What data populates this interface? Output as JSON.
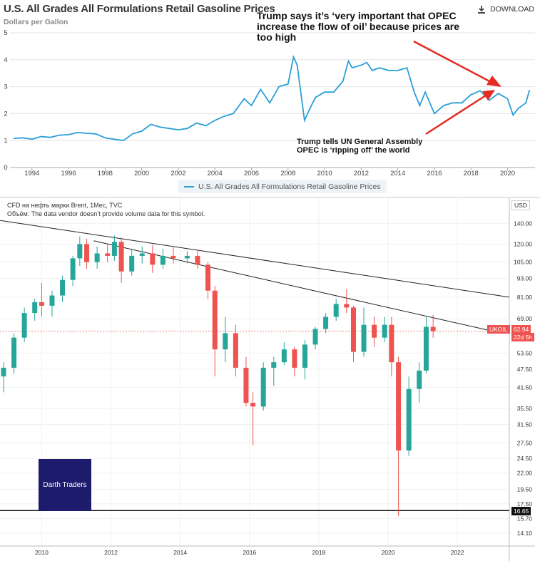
{
  "colors": {
    "line": "#2a9fd6",
    "arrow": "#e32b23",
    "up": "#26a69a",
    "down": "#ef5350",
    "logo_bg": "#1d1b6b"
  },
  "top_panel": {
    "title": "U.S. All Grades All Formulations Retail Gasoline Prices",
    "subtitle": "Dollars per Gallon",
    "download_label": "DOWNLOAD",
    "download_icon": "download-icon",
    "annotation_1": "Trump says it’s ‘very important that OPEC increase the flow of oil’ because prices are too high",
    "annotation_2": "Trump tells UN General Assembly OPEC is ‘ripping off’ the world",
    "legend_label": "U.S. All Grades All Formulations Retail Gasoline Prices"
  },
  "bottom_panel": {
    "header_line_1": "CFD на нефть марки Brent, 1Мес, TVC",
    "header_line_2": "Объём: The data vendor doesn’t provide volume data for this symbol.",
    "currency": "USD",
    "symbol_tag": "UKOIL",
    "last_price": "62.94",
    "countdown": "22d 5h",
    "support_label": "16.65",
    "watermark": "Darth Traders"
  },
  "chart_data": [
    {
      "type": "line",
      "title": "U.S. All Grades All Formulations Retail Gasoline Prices",
      "ylabel": "Dollars per Gallon",
      "ylim": [
        0,
        5
      ],
      "yticks": [
        "0",
        "1",
        "2",
        "3",
        "4",
        "5"
      ],
      "xticks": [
        "1994",
        "1996",
        "1998",
        "2000",
        "2002",
        "2004",
        "2006",
        "2008",
        "2010",
        "2012",
        "2014",
        "2016",
        "2018",
        "2020"
      ],
      "series": [
        {
          "name": "U.S. All Grades All Formulations Retail Gasoline Prices",
          "x": [
            1993.0,
            1993.5,
            1994.0,
            1994.5,
            1995.0,
            1995.5,
            1996.0,
            1996.5,
            1997.0,
            1997.5,
            1998.0,
            1998.5,
            1999.0,
            1999.5,
            2000.0,
            2000.5,
            2001.0,
            2001.5,
            2002.0,
            2002.5,
            2003.0,
            2003.5,
            2004.0,
            2004.5,
            2005.0,
            2005.6,
            2006.0,
            2006.5,
            2007.0,
            2007.5,
            2008.0,
            2008.3,
            2008.5,
            2008.9,
            2009.2,
            2009.5,
            2010.0,
            2010.5,
            2011.0,
            2011.3,
            2011.5,
            2012.0,
            2012.3,
            2012.6,
            2013.0,
            2013.5,
            2014.0,
            2014.5,
            2014.9,
            2015.2,
            2015.5,
            2016.0,
            2016.5,
            2017.0,
            2017.5,
            2018.0,
            2018.5,
            2019.0,
            2019.5,
            2020.0,
            2020.3,
            2020.6,
            2021.0,
            2021.2
          ],
          "values": [
            1.08,
            1.1,
            1.05,
            1.15,
            1.12,
            1.2,
            1.22,
            1.3,
            1.27,
            1.25,
            1.1,
            1.05,
            1.0,
            1.25,
            1.35,
            1.6,
            1.5,
            1.45,
            1.4,
            1.45,
            1.65,
            1.55,
            1.75,
            1.9,
            2.0,
            2.55,
            2.3,
            2.9,
            2.4,
            3.0,
            3.1,
            4.1,
            3.8,
            1.75,
            2.2,
            2.6,
            2.8,
            2.8,
            3.2,
            3.95,
            3.7,
            3.8,
            3.9,
            3.6,
            3.7,
            3.6,
            3.6,
            3.7,
            2.8,
            2.3,
            2.8,
            2.0,
            2.3,
            2.4,
            2.4,
            2.7,
            2.85,
            2.5,
            2.75,
            2.55,
            1.95,
            2.2,
            2.4,
            2.88
          ]
        }
      ]
    },
    {
      "type": "candlestick",
      "title": "CFD на нефть марки Brent, 1Мес, TVC",
      "ylabel": "USD",
      "scale": "log",
      "ylim": [
        13.5,
        160
      ],
      "yticks": [
        "140.00",
        "120.00",
        "105.00",
        "93.00",
        "81.00",
        "69.00",
        "53.50",
        "47.50",
        "41.50",
        "35.50",
        "31.50",
        "27.50",
        "24.50",
        "22.00",
        "19.50",
        "17.50",
        "15.70",
        "14.10"
      ],
      "xticks": [
        "2010",
        "2012",
        "2014",
        "2016",
        "2018",
        "2020",
        "2022"
      ],
      "series": [
        {
          "name": "UKOIL",
          "x": [
            2008.9,
            2009.2,
            2009.5,
            2009.8,
            2010.0,
            2010.3,
            2010.6,
            2010.9,
            2011.1,
            2011.3,
            2011.6,
            2011.9,
            2012.1,
            2012.3,
            2012.6,
            2012.9,
            2013.2,
            2013.5,
            2013.8,
            2014.2,
            2014.5,
            2014.8,
            2015.0,
            2015.3,
            2015.6,
            2015.9,
            2016.1,
            2016.4,
            2016.7,
            2017.0,
            2017.3,
            2017.6,
            2017.9,
            2018.2,
            2018.5,
            2018.8,
            2019.0,
            2019.3,
            2019.6,
            2019.9,
            2020.1,
            2020.3,
            2020.6,
            2020.9,
            2021.1,
            2021.3
          ],
          "values": [
            [
              45,
              50,
              40,
              48
            ],
            [
              48,
              62,
              46,
              60
            ],
            [
              60,
              75,
              58,
              72
            ],
            [
              72,
              80,
              68,
              78
            ],
            [
              78,
              90,
              70,
              76
            ],
            [
              76,
              85,
              70,
              82
            ],
            [
              82,
              95,
              78,
              92
            ],
            [
              92,
              110,
              88,
              108
            ],
            [
              108,
              127,
              102,
              120
            ],
            [
              120,
              125,
              100,
              105
            ],
            [
              105,
              118,
              100,
              112
            ],
            [
              112,
              120,
              105,
              110
            ],
            [
              110,
              128,
              106,
              122
            ],
            [
              122,
              126,
              90,
              98
            ],
            [
              98,
              116,
              95,
              110
            ],
            [
              110,
              118,
              104,
              112
            ],
            [
              112,
              119,
              97,
              103
            ],
            [
              103,
              116,
              100,
              110
            ],
            [
              110,
              117,
              104,
              108
            ],
            [
              108,
              114,
              104,
              110
            ],
            [
              110,
              115,
              100,
              103
            ],
            [
              103,
              105,
              80,
              85
            ],
            [
              85,
              88,
              45,
              55
            ],
            [
              55,
              70,
              50,
              62
            ],
            [
              62,
              66,
              45,
              48
            ],
            [
              48,
              52,
              36,
              37
            ],
            [
              37,
              40,
              27,
              36
            ],
            [
              36,
              50,
              35,
              48
            ],
            [
              48,
              52,
              42,
              50
            ],
            [
              50,
              58,
              49,
              55
            ],
            [
              55,
              56,
              45,
              48
            ],
            [
              48,
              59,
              44,
              57
            ],
            [
              57,
              65,
              55,
              64
            ],
            [
              64,
              72,
              62,
              70
            ],
            [
              70,
              80,
              68,
              77
            ],
            [
              77,
              86,
              72,
              75
            ],
            [
              75,
              76,
              50,
              54
            ],
            [
              54,
              75,
              52,
              66
            ],
            [
              66,
              70,
              56,
              60
            ],
            [
              60,
              70,
              58,
              66
            ],
            [
              66,
              70,
              45,
              50
            ],
            [
              50,
              52,
              16,
              26
            ],
            [
              26,
              45,
              25,
              41
            ],
            [
              41,
              50,
              37,
              47
            ],
            [
              47,
              70,
              46,
              65
            ],
            [
              65,
              71,
              60,
              62.94
            ]
          ]
        }
      ],
      "trendlines": [
        {
          "x": [
            2008.8,
            2023.5
          ],
          "y": [
            143,
            81
          ]
        },
        {
          "x": [
            2011.5,
            2023.0
          ],
          "y": [
            123,
            63
          ]
        }
      ],
      "hlines": [
        16.65
      ]
    }
  ]
}
